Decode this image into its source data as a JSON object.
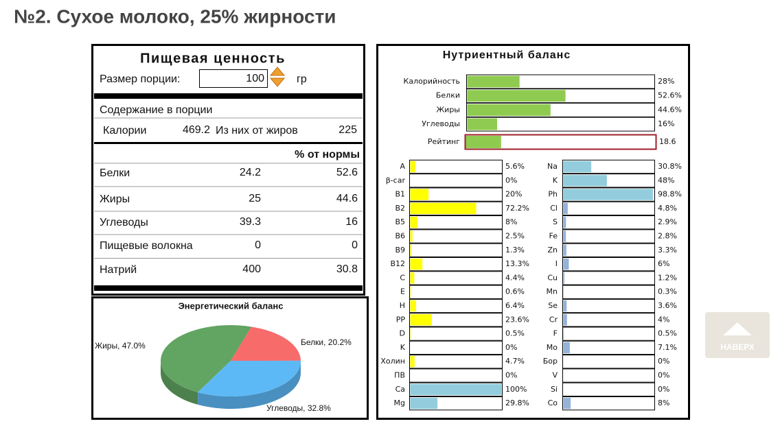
{
  "title": "№2. Сухое молоко, 25% жирности",
  "nutrition": {
    "title": "Пищевая ценность",
    "portion_label": "Размер порции:",
    "portion_value": 100,
    "portion_unit": "гр",
    "section": "Содержание в порции",
    "calories_label": "Калории",
    "calories": 469.2,
    "fat_calories_label": "Из них от жиров",
    "fat_calories": 225,
    "norm_header": "% от нормы",
    "rows": [
      {
        "name": "Белки",
        "amount": 24.2,
        "norm": 52.6
      },
      {
        "name": "Жиры",
        "amount": 25,
        "norm": 44.6
      },
      {
        "name": "Углеводы",
        "amount": 39.3,
        "norm": 16
      },
      {
        "name": "Пищевые волокна",
        "amount": 0,
        "norm": 0
      },
      {
        "name": "Натрий",
        "amount": 400,
        "norm": 30.8
      }
    ]
  },
  "energy_chart": {
    "type": "pie",
    "title": "Энергетический баланс",
    "categories": [
      "Жиры",
      "Белки",
      "Углеводы"
    ],
    "values": [
      47.0,
      20.2,
      32.8
    ],
    "value_labels": [
      "47.0%",
      "20.2%",
      "32.8%"
    ],
    "colors": [
      "#62a462",
      "#f76b6b",
      "#5db9f6"
    ]
  },
  "nutrient_chart": {
    "type": "bar",
    "title": "Нутриентный баланс",
    "xlim": [
      0,
      100
    ],
    "main": {
      "categories": [
        "Калорийность",
        "Белки",
        "Жиры",
        "Углеводы"
      ],
      "values": [
        28,
        52.6,
        44.6,
        16
      ],
      "value_labels": [
        "28%",
        "52.6%",
        "44.6%",
        "16%"
      ],
      "color": "#8fcb50"
    },
    "rating": {
      "name": "Рейтинг",
      "value": 18.6,
      "color": "#8fcb50",
      "border": "#9e1f28"
    },
    "vitamins": {
      "categories": [
        "A",
        "β-car",
        "B1",
        "B2",
        "B5",
        "B6",
        "B9",
        "B12",
        "C",
        "E",
        "H",
        "PP",
        "D",
        "K",
        "Холин",
        "ПВ",
        "Ca",
        "Mg"
      ],
      "values": [
        5.6,
        0,
        20,
        72.2,
        8,
        2.5,
        1.3,
        13.3,
        4.4,
        0.6,
        6.4,
        23.6,
        0.5,
        0,
        4.7,
        0,
        100,
        29.8
      ],
      "value_labels": [
        "5.6%",
        "0%",
        "20%",
        "72.2%",
        "8%",
        "2.5%",
        "1.3%",
        "13.3%",
        "4.4%",
        "0.6%",
        "6.4%",
        "23.6%",
        "0.5%",
        "0%",
        "4.7%",
        "0%",
        "100%",
        "29.8%"
      ],
      "colors": [
        "#ffff00",
        "#ffff00",
        "#ffff00",
        "#ffff00",
        "#ffff00",
        "#ffff00",
        "#ffff00",
        "#ffff00",
        "#ffff00",
        "#ffff00",
        "#ffff00",
        "#ffff00",
        "#ffff00",
        "#ffff00",
        "#ffff00",
        "#ffff00",
        "#93cddd",
        "#93cddd"
      ]
    },
    "minerals": {
      "categories": [
        "Na",
        "K",
        "Ph",
        "Cl",
        "S",
        "Fe",
        "Zn",
        "I",
        "Cu",
        "Mn",
        "Se",
        "Cr",
        "F",
        "Mo",
        "Бор",
        "V",
        "Si",
        "Co"
      ],
      "values": [
        30.8,
        48,
        98.8,
        4.8,
        2.9,
        2.8,
        3.3,
        6,
        1.2,
        0.3,
        3.6,
        4,
        0.5,
        7.1,
        0,
        0,
        0,
        8
      ],
      "value_labels": [
        "30.8%",
        "48%",
        "98.8%",
        "4.8%",
        "2.9%",
        "2.8%",
        "3.3%",
        "6%",
        "1.2%",
        "0.3%",
        "3.6%",
        "4%",
        "0.5%",
        "7.1%",
        "0%",
        "0%",
        "0%",
        "8%"
      ],
      "colors": [
        "#93cddd",
        "#93cddd",
        "#93cddd",
        "#95b3d7",
        "#95b3d7",
        "#95b3d7",
        "#95b3d7",
        "#95b3d7",
        "#95b3d7",
        "#95b3d7",
        "#95b3d7",
        "#95b3d7",
        "#95b3d7",
        "#95b3d7",
        "#95b3d7",
        "#95b3d7",
        "#95b3d7",
        "#95b3d7"
      ]
    }
  },
  "scroll_button": "НАВЕРХ"
}
